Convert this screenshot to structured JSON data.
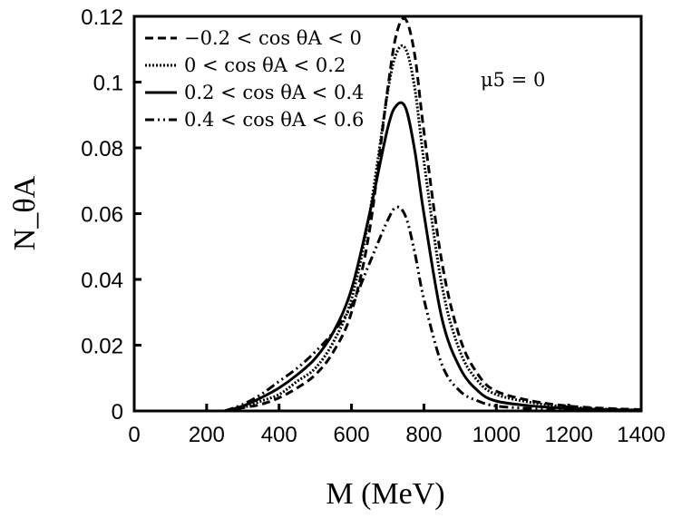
{
  "chart_data": {
    "type": "line",
    "xlabel": "M (MeV)",
    "ylabel": "N_θA",
    "ylabel_color": "#7b3f3f",
    "xlim": [
      0,
      1400
    ],
    "ylim": [
      0,
      0.12
    ],
    "xticks": [
      "0",
      "200",
      "400",
      "600",
      "800",
      "1000",
      "1200",
      "1400"
    ],
    "xtick_values": [
      0,
      200,
      400,
      600,
      800,
      1000,
      1200,
      1400
    ],
    "yticks": [
      "0",
      "0.02",
      "0.04",
      "0.06",
      "0.08",
      "0.1",
      "0.12"
    ],
    "ytick_values": [
      0,
      0.02,
      0.04,
      0.06,
      0.08,
      0.1,
      0.12
    ],
    "grid": false,
    "legend_placement": "top-left",
    "annotation": "μ5 = 0",
    "x": [
      250,
      300,
      350,
      400,
      450,
      500,
      550,
      600,
      650,
      700,
      725,
      750,
      775,
      800,
      850,
      900,
      950,
      1000,
      1100,
      1200,
      1300,
      1400
    ],
    "series": [
      {
        "name": "−0.2 < cos θA < 0",
        "style": "dashed",
        "values": [
          0,
          0.001,
          0.002,
          0.004,
          0.007,
          0.011,
          0.018,
          0.03,
          0.055,
          0.098,
          0.115,
          0.119,
          0.108,
          0.085,
          0.045,
          0.022,
          0.011,
          0.006,
          0.003,
          0.0015,
          0.0008,
          0.0004
        ]
      },
      {
        "name": "0 < cos θA < 0.2",
        "style": "dotted",
        "values": [
          0,
          0.001,
          0.003,
          0.005,
          0.009,
          0.013,
          0.021,
          0.034,
          0.06,
          0.097,
          0.109,
          0.11,
          0.098,
          0.076,
          0.038,
          0.018,
          0.009,
          0.005,
          0.0025,
          0.0012,
          0.0006,
          0.0003
        ]
      },
      {
        "name": "0.2 < cos θA < 0.4",
        "style": "solid",
        "values": [
          0,
          0.0015,
          0.004,
          0.007,
          0.011,
          0.016,
          0.024,
          0.037,
          0.06,
          0.086,
          0.093,
          0.092,
          0.079,
          0.06,
          0.028,
          0.013,
          0.006,
          0.003,
          0.0015,
          0.0008,
          0.0004,
          0.0002
        ]
      },
      {
        "name": "0.4 < cos θA < 0.6",
        "style": "dash-dot-dot",
        "values": [
          0,
          0.002,
          0.005,
          0.009,
          0.013,
          0.018,
          0.024,
          0.032,
          0.045,
          0.058,
          0.062,
          0.059,
          0.048,
          0.034,
          0.014,
          0.006,
          0.003,
          0.0015,
          0.0007,
          0.0004,
          0.0002,
          0.0001
        ]
      }
    ]
  }
}
